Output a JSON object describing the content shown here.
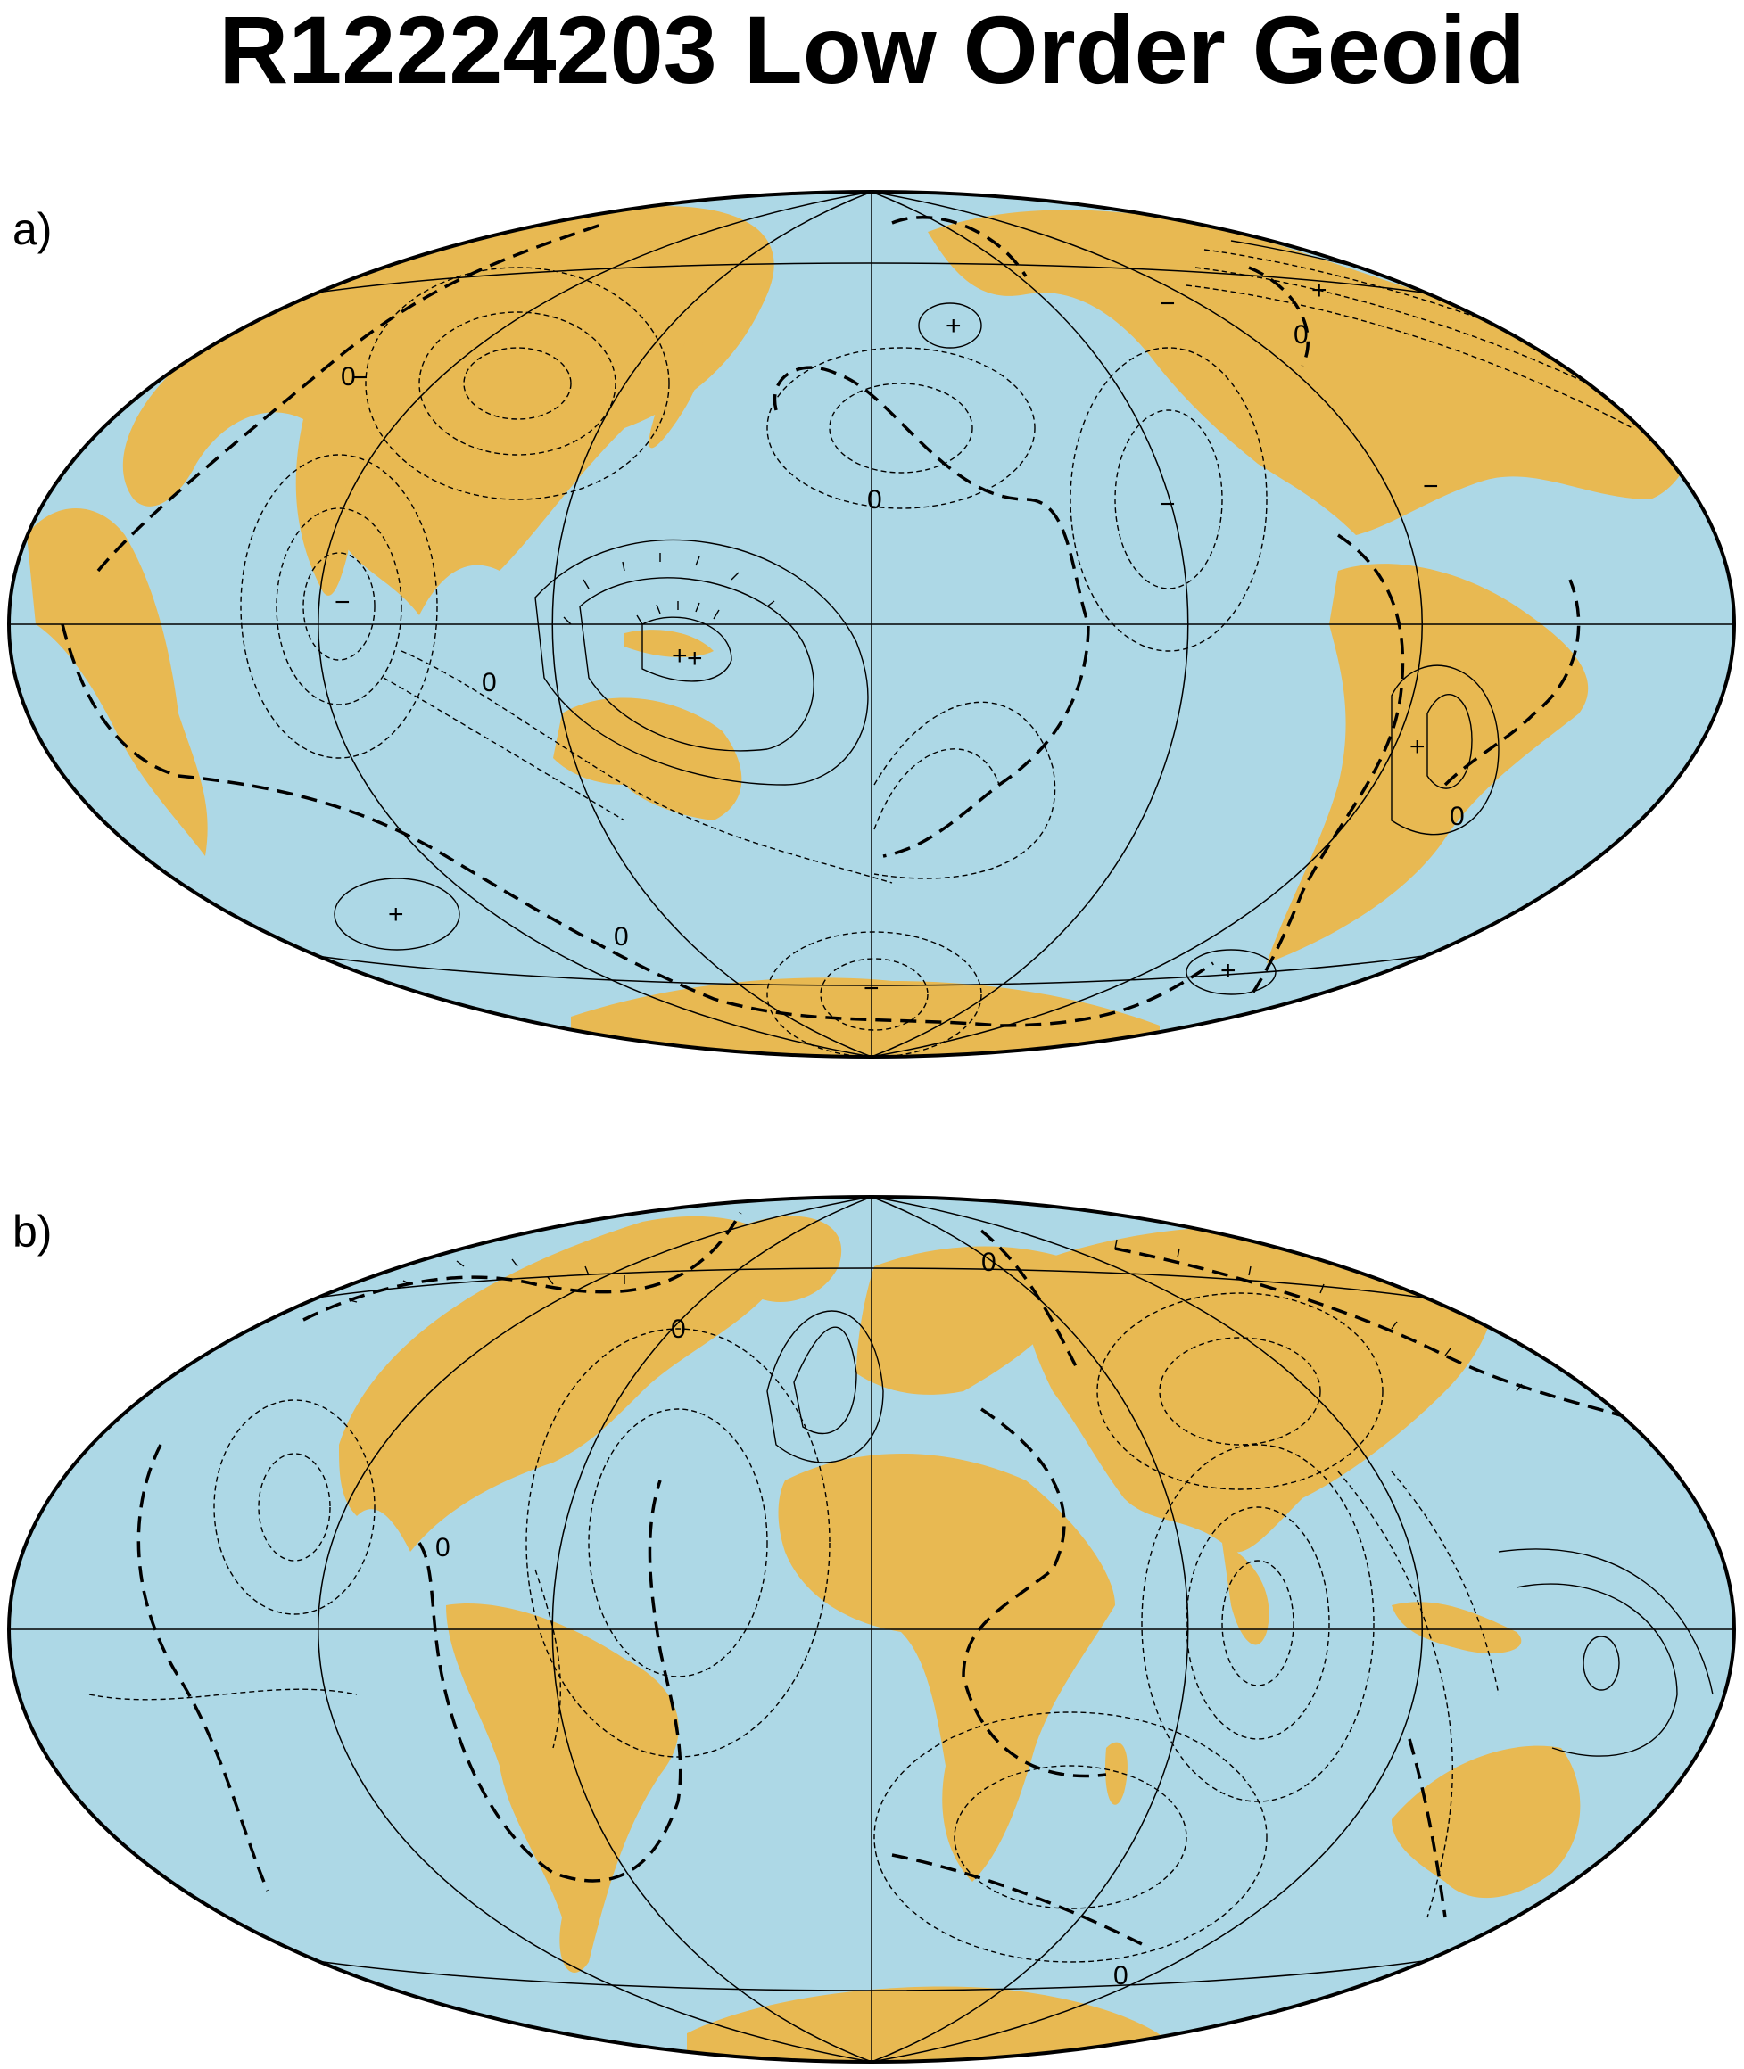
{
  "title": "R12224203 Low Order Geoid",
  "colors": {
    "ocean": "#add8e6",
    "land": "#e8b952",
    "contour": "#000000",
    "background": "#ffffff"
  },
  "panels": [
    {
      "id": "a",
      "label": "a)",
      "projection": "Hammer-Aitoff (global)",
      "central_meridian": "180°",
      "zero_label": "0",
      "plus_label": "+",
      "minus_label": "−"
    },
    {
      "id": "b",
      "label": "b)",
      "projection": "Hammer-Aitoff (global)",
      "central_meridian": "0°",
      "zero_label": "0",
      "plus_label": "+",
      "minus_label": "−"
    }
  ]
}
